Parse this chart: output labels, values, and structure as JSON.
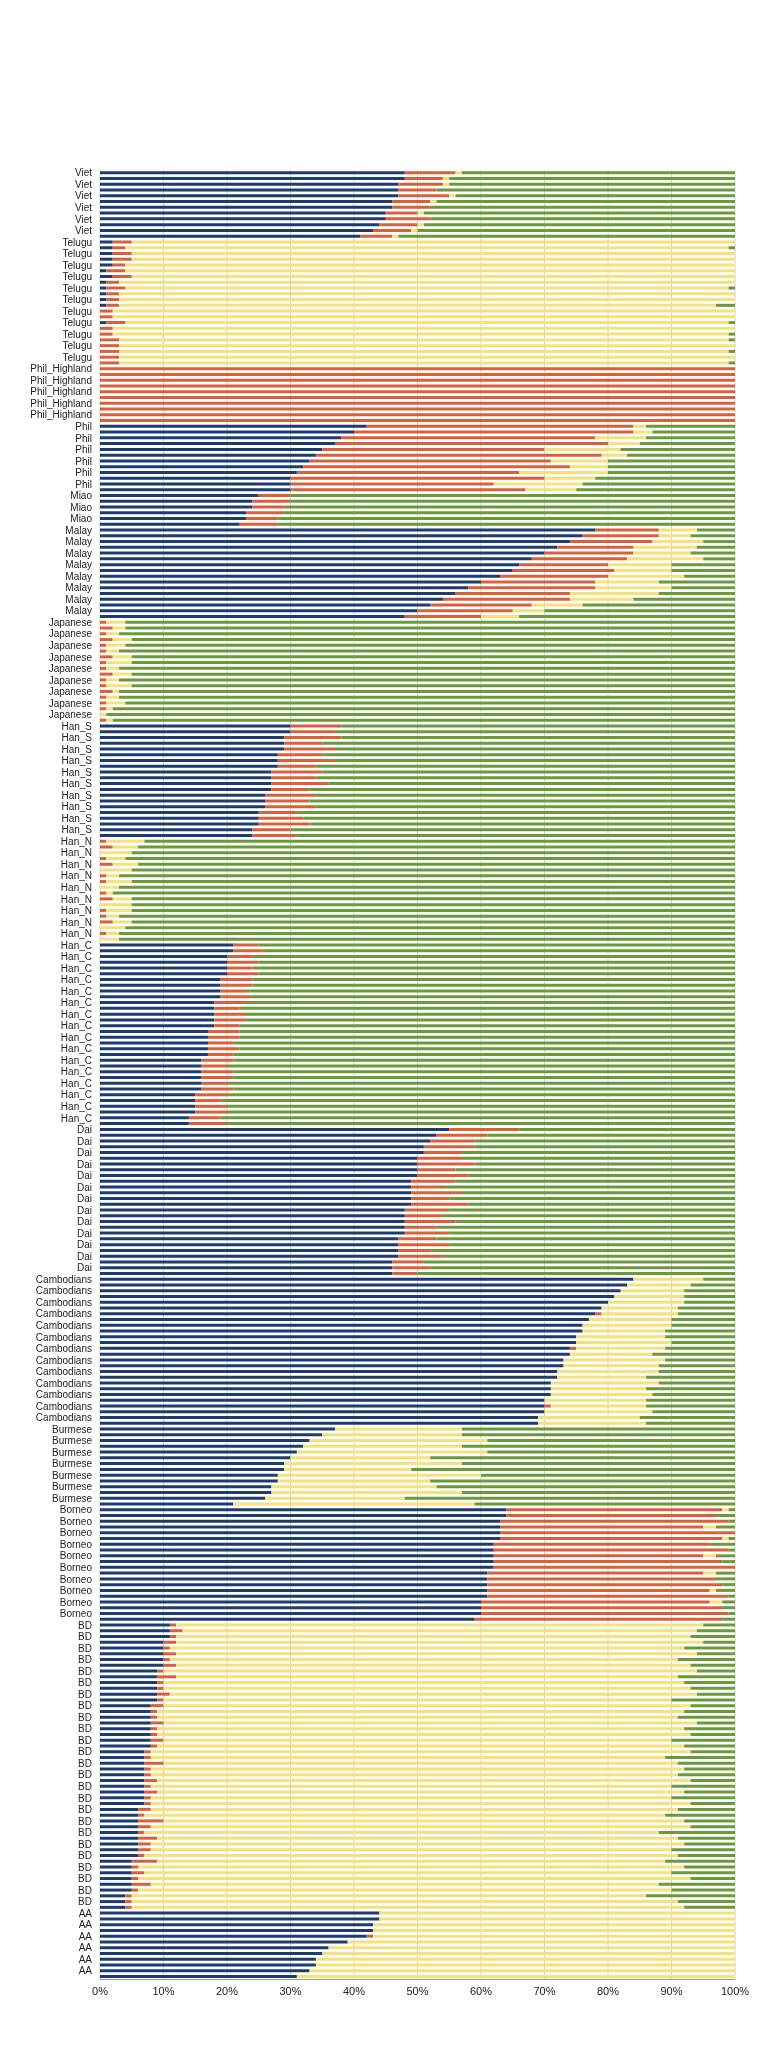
{
  "chart_data": {
    "type": "bar",
    "orientation": "horizontal",
    "stacked": true,
    "grid": "x",
    "xlim": [
      0,
      100
    ],
    "xticks": [
      {
        "value": 0,
        "label": "0%"
      },
      {
        "value": 10,
        "label": "10%"
      },
      {
        "value": 20,
        "label": "20%"
      },
      {
        "value": 30,
        "label": "30%"
      },
      {
        "value": 40,
        "label": "40%"
      },
      {
        "value": 50,
        "label": "50%"
      },
      {
        "value": 60,
        "label": "60%"
      },
      {
        "value": 70,
        "label": "70%"
      },
      {
        "value": 80,
        "label": "80%"
      },
      {
        "value": 90,
        "label": "90%"
      },
      {
        "value": 100,
        "label": "100%"
      }
    ],
    "categories": [
      "Viet",
      null,
      "Viet",
      null,
      "Viet",
      null,
      "Viet",
      null,
      "Viet",
      null,
      "Viet",
      null,
      "Telugu",
      null,
      "Telugu",
      null,
      "Telugu",
      null,
      "Telugu",
      null,
      "Telugu",
      null,
      "Telugu",
      null,
      "Telugu",
      null,
      "Telugu",
      null,
      "Telugu",
      null,
      "Telugu",
      null,
      "Telugu",
      null,
      "Phil_Highland",
      null,
      "Phil_Highland",
      null,
      "Phil_Highland",
      null,
      "Phil_Highland",
      null,
      "Phil_Highland",
      null,
      "Phil",
      null,
      "Phil",
      null,
      "Phil",
      null,
      "Phil",
      null,
      "Phil",
      null,
      "Phil",
      null,
      "Miao",
      null,
      "Miao",
      null,
      "Miao",
      null,
      "Malay",
      null,
      "Malay",
      null,
      "Malay",
      null,
      "Malay",
      null,
      "Malay",
      null,
      "Malay",
      null,
      "Malay",
      null,
      "Malay",
      null,
      "Japanese",
      null,
      "Japanese",
      null,
      "Japanese",
      null,
      "Japanese",
      null,
      "Japanese",
      null,
      "Japanese",
      null,
      "Japanese",
      null,
      "Japanese",
      null,
      "Japanese",
      null,
      "Han_S",
      null,
      "Han_S",
      null,
      "Han_S",
      null,
      "Han_S",
      null,
      "Han_S",
      null,
      "Han_S",
      null,
      "Han_S",
      null,
      "Han_S",
      null,
      "Han_S",
      null,
      "Han_S",
      null,
      "Han_N",
      null,
      "Han_N",
      null,
      "Han_N",
      null,
      "Han_N",
      null,
      "Han_N",
      null,
      "Han_N",
      null,
      "Han_N",
      null,
      "Han_N",
      null,
      "Han_N",
      null,
      "Han_C",
      null,
      "Han_C",
      null,
      "Han_C",
      null,
      "Han_C",
      null,
      "Han_C",
      null,
      "Han_C",
      null,
      "Han_C",
      null,
      "Han_C",
      null,
      "Han_C",
      null,
      "Han_C",
      null,
      "Han_C",
      null,
      "Han_C",
      null,
      "Han_C",
      null,
      "Han_C",
      null,
      "Han_C",
      null,
      "Han_C",
      null,
      "Dai",
      null,
      "Dai",
      null,
      "Dai",
      null,
      "Dai",
      null,
      "Dai",
      null,
      "Dai",
      null,
      "Dai",
      null,
      "Dai",
      null,
      "Dai",
      null,
      "Dai",
      null,
      "Dai",
      null,
      "Dai",
      null,
      "Dai",
      null,
      "Cambodians",
      null,
      "Cambodians",
      null,
      "Cambodians",
      null,
      "Cambodians",
      null,
      "Cambodians",
      null,
      "Cambodians",
      null,
      "Cambodians",
      null,
      "Cambodians",
      null,
      "Cambodians",
      null,
      "Cambodians",
      null,
      "Cambodians",
      null,
      "Cambodians",
      null,
      "Cambodians",
      null,
      "Burmese",
      null,
      "Burmese",
      null,
      "Burmese",
      null,
      "Burmese",
      null,
      "Burmese",
      null,
      "Burmese",
      null,
      "Burmese",
      null,
      "Borneo",
      null,
      "Borneo",
      null,
      "Borneo",
      null,
      "Borneo",
      null,
      "Borneo",
      null,
      "Borneo",
      null,
      "Borneo",
      null,
      "Borneo",
      null,
      "Borneo",
      null,
      "Borneo",
      null,
      "BD",
      null,
      "BD",
      null,
      "BD",
      null,
      "BD",
      null,
      "BD",
      null,
      "BD",
      null,
      "BD",
      null,
      "BD",
      null,
      "BD",
      null,
      "BD",
      null,
      "BD",
      null,
      "BD",
      null,
      "BD",
      null,
      "BD",
      null,
      "BD",
      null,
      "BD",
      null,
      "BD",
      null,
      "BD",
      null,
      "BD",
      null,
      "BD",
      null,
      "BD",
      null,
      "BD",
      null,
      "BD",
      null,
      "BD",
      null,
      "BD",
      null,
      "AA",
      null,
      "AA",
      null,
      "AA",
      null,
      "AA",
      null,
      "AA",
      null,
      "AA",
      null
    ],
    "series": [
      {
        "color": "#1d3c70",
        "values": [
          48,
          48,
          47,
          47,
          47,
          46,
          46,
          45,
          45,
          44,
          43,
          41,
          2,
          2,
          2,
          2,
          2,
          1,
          2,
          1,
          1,
          1,
          1,
          1,
          0,
          0,
          1,
          0,
          0,
          0,
          0,
          0,
          0,
          0,
          0,
          0,
          0,
          0,
          0,
          0,
          0,
          0,
          0,
          0,
          42,
          40,
          38,
          37,
          35,
          34,
          33,
          32,
          31,
          30,
          30,
          30,
          25,
          24,
          24,
          23,
          23,
          22,
          78,
          76,
          74,
          72,
          70,
          68,
          66,
          65,
          63,
          60,
          58,
          56,
          54,
          52,
          50,
          48,
          0,
          0,
          0,
          0,
          0,
          0,
          0,
          0,
          0,
          0,
          0,
          0,
          0,
          0,
          0,
          0,
          0,
          0,
          30,
          30,
          29,
          29,
          29,
          28,
          28,
          28,
          27,
          27,
          27,
          27,
          26,
          26,
          26,
          25,
          25,
          25,
          24,
          24,
          0,
          0,
          0,
          0,
          0,
          0,
          0,
          0,
          0,
          0,
          0,
          0,
          0,
          0,
          0,
          0,
          0,
          0,
          21,
          21,
          20,
          20,
          20,
          20,
          19,
          19,
          19,
          19,
          18,
          18,
          18,
          18,
          18,
          17,
          17,
          17,
          17,
          17,
          16,
          16,
          16,
          16,
          16,
          16,
          15,
          15,
          15,
          15,
          14,
          14,
          55,
          53,
          52,
          51,
          51,
          50,
          50,
          50,
          50,
          49,
          49,
          49,
          49,
          49,
          48,
          48,
          48,
          48,
          48,
          47,
          47,
          47,
          47,
          46,
          46,
          46,
          84,
          83,
          82,
          81,
          80,
          79,
          78,
          77,
          76,
          76,
          75,
          75,
          74,
          74,
          73,
          73,
          72,
          72,
          71,
          71,
          71,
          70,
          70,
          70,
          69,
          69,
          37,
          35,
          33,
          32,
          31,
          30,
          29,
          29,
          28,
          28,
          27,
          27,
          26,
          21,
          64,
          64,
          63,
          63,
          63,
          63,
          62,
          62,
          62,
          62,
          62,
          61,
          61,
          61,
          61,
          61,
          60,
          60,
          60,
          59,
          11,
          11,
          11,
          10,
          10,
          10,
          10,
          10,
          9,
          9,
          9,
          9,
          9,
          9,
          8,
          8,
          8,
          8,
          8,
          8,
          8,
          8,
          7,
          7,
          7,
          7,
          7,
          7,
          7,
          7,
          7,
          7,
          6,
          6,
          6,
          6,
          6,
          6,
          6,
          6,
          6,
          5,
          5,
          5,
          5,
          5,
          5,
          4,
          4,
          4,
          44,
          44,
          43,
          43,
          42,
          39,
          36,
          35,
          34,
          34,
          33,
          31
        ]
      },
      {
        "color": "#d8613c",
        "values": [
          8,
          6,
          7,
          6,
          8,
          6,
          6,
          5,
          7,
          6,
          6,
          5,
          3,
          2,
          3,
          3,
          2,
          3,
          3,
          2,
          3,
          2,
          2,
          2,
          2,
          2,
          3,
          2,
          2,
          3,
          3,
          3,
          3,
          3,
          100,
          100,
          100,
          100,
          100,
          100,
          100,
          100,
          100,
          100,
          42,
          44,
          40,
          43,
          35,
          45,
          38,
          42,
          35,
          40,
          32,
          37,
          5,
          6,
          5,
          6,
          5,
          6,
          10,
          12,
          13,
          12,
          14,
          15,
          14,
          16,
          17,
          18,
          20,
          18,
          20,
          16,
          15,
          12,
          1,
          2,
          1,
          2,
          1,
          1,
          2,
          1,
          1,
          2,
          1,
          1,
          2,
          1,
          1,
          1,
          0,
          1,
          8,
          7,
          9,
          6,
          8,
          7,
          9,
          6,
          8,
          7,
          9,
          6,
          8,
          7,
          8,
          6,
          7,
          8,
          6,
          7,
          1,
          2,
          0,
          1,
          2,
          0,
          1,
          1,
          0,
          1,
          2,
          0,
          1,
          1,
          2,
          0,
          1,
          0,
          4,
          5,
          4,
          5,
          4,
          5,
          5,
          5,
          4,
          5,
          5,
          4,
          5,
          5,
          4,
          5,
          5,
          4,
          5,
          4,
          5,
          4,
          5,
          5,
          4,
          5,
          5,
          4,
          5,
          5,
          5,
          6,
          11,
          8,
          7,
          8,
          6,
          7,
          9,
          6,
          8,
          7,
          5,
          8,
          6,
          9,
          7,
          6,
          8,
          5,
          7,
          6,
          8,
          5,
          7,
          5,
          6,
          4,
          0,
          0,
          0,
          0,
          0,
          0,
          1,
          0,
          0,
          0,
          0,
          0,
          1,
          0,
          0,
          0,
          0,
          0,
          0,
          0,
          0,
          0,
          1,
          0,
          0,
          0,
          0,
          0,
          0,
          0,
          0,
          0,
          0,
          0,
          0,
          0,
          0,
          0,
          0,
          0,
          34,
          33,
          36,
          32,
          37,
          35,
          34,
          37,
          33,
          36,
          38,
          34,
          36,
          37,
          35,
          38,
          36,
          38,
          39,
          39,
          1,
          2,
          1,
          2,
          1,
          2,
          1,
          2,
          1,
          3,
          1,
          1,
          2,
          1,
          2,
          1,
          1,
          2,
          1,
          1,
          2,
          1,
          1,
          1,
          3,
          1,
          1,
          2,
          1,
          2,
          1,
          1,
          2,
          1,
          4,
          2,
          1,
          3,
          2,
          2,
          1,
          4,
          1,
          2,
          1,
          3,
          1,
          1,
          1,
          1,
          0,
          0,
          0,
          0,
          1,
          0,
          0,
          0,
          0,
          0,
          0,
          0
        ]
      },
      {
        "color": "#f6e27c",
        "values": [
          1,
          1,
          1,
          0,
          1,
          1,
          0,
          1,
          0,
          1,
          1,
          1,
          95,
          95,
          95,
          95,
          96,
          96,
          95,
          97,
          95,
          97,
          97,
          94,
          98,
          98,
          95,
          98,
          97,
          96,
          97,
          96,
          97,
          96,
          0,
          0,
          0,
          0,
          0,
          0,
          0,
          0,
          0,
          0,
          2,
          3,
          8,
          5,
          12,
          4,
          9,
          6,
          14,
          8,
          14,
          8,
          0,
          0,
          0,
          0,
          0,
          0,
          6,
          5,
          8,
          10,
          9,
          12,
          10,
          9,
          12,
          10,
          12,
          14,
          10,
          8,
          5,
          6,
          3,
          2,
          2,
          3,
          3,
          2,
          3,
          4,
          2,
          3,
          2,
          4,
          1,
          2,
          3,
          1,
          1,
          1,
          0,
          0,
          0,
          0,
          0,
          0,
          0,
          0,
          0,
          0,
          0,
          0,
          0,
          0,
          0,
          0,
          0,
          0,
          0,
          0,
          6,
          4,
          5,
          3,
          4,
          5,
          2,
          4,
          3,
          1,
          3,
          5,
          4,
          2,
          3,
          4,
          2,
          3,
          0,
          0,
          0,
          0,
          0,
          0,
          0,
          0,
          0,
          0,
          0,
          0,
          0,
          0,
          0,
          0,
          0,
          0,
          0,
          0,
          0,
          0,
          0,
          0,
          0,
          0,
          0,
          0,
          0,
          0,
          0,
          0,
          0,
          0,
          0,
          0,
          0,
          0,
          0,
          0,
          0,
          0,
          0,
          0,
          0,
          0,
          0,
          0,
          0,
          0,
          0,
          0,
          0,
          0,
          0,
          0,
          0,
          0,
          11,
          10,
          10,
          11,
          12,
          12,
          12,
          13,
          14,
          13,
          14,
          15,
          14,
          13,
          16,
          15,
          16,
          14,
          17,
          15,
          16,
          16,
          15,
          17,
          16,
          17,
          20,
          22,
          28,
          25,
          30,
          22,
          28,
          20,
          32,
          24,
          26,
          30,
          22,
          38,
          1,
          0,
          0,
          2,
          0,
          1,
          0,
          0,
          2,
          0,
          0,
          2,
          0,
          0,
          1,
          0,
          2,
          0,
          0,
          0,
          83,
          81,
          81,
          83,
          81,
          82,
          80,
          81,
          84,
          79,
          82,
          83,
          83,
          80,
          83,
          83,
          82,
          84,
          83,
          84,
          80,
          83,
          85,
          81,
          81,
          84,
          83,
          84,
          82,
          83,
          82,
          85,
          83,
          82,
          82,
          85,
          81,
          82,
          84,
          82,
          84,
          80,
          86,
          83,
          87,
          80,
          84,
          81,
          86,
          87,
          56,
          56,
          57,
          57,
          57,
          61,
          64,
          65,
          66,
          66,
          67,
          69
        ]
      },
      {
        "color": "#6a9a3a",
        "values": [
          43,
          45,
          45,
          47,
          44,
          47,
          48,
          49,
          48,
          49,
          50,
          53,
          0,
          1,
          0,
          0,
          0,
          0,
          0,
          0,
          1,
          0,
          0,
          3,
          0,
          0,
          1,
          0,
          1,
          1,
          0,
          1,
          0,
          1,
          0,
          0,
          0,
          0,
          0,
          0,
          0,
          0,
          0,
          0,
          14,
          13,
          14,
          15,
          18,
          17,
          20,
          20,
          20,
          22,
          24,
          25,
          70,
          70,
          71,
          71,
          72,
          72,
          6,
          7,
          5,
          6,
          7,
          5,
          10,
          10,
          8,
          12,
          10,
          12,
          16,
          24,
          30,
          34,
          96,
          96,
          97,
          95,
          96,
          97,
          95,
          95,
          97,
          95,
          97,
          95,
          97,
          97,
          96,
          98,
          99,
          98,
          62,
          63,
          62,
          65,
          63,
          65,
          63,
          66,
          65,
          66,
          64,
          67,
          66,
          67,
          66,
          69,
          68,
          67,
          70,
          69,
          93,
          94,
          95,
          96,
          94,
          95,
          97,
          95,
          97,
          98,
          95,
          95,
          95,
          97,
          95,
          96,
          97,
          97,
          75,
          74,
          76,
          75,
          76,
          75,
          76,
          76,
          77,
          76,
          77,
          78,
          77,
          77,
          78,
          78,
          78,
          79,
          78,
          79,
          79,
          80,
          79,
          79,
          80,
          79,
          80,
          81,
          80,
          80,
          81,
          80,
          34,
          39,
          41,
          41,
          43,
          43,
          41,
          44,
          42,
          44,
          46,
          43,
          45,
          42,
          45,
          46,
          44,
          47,
          45,
          47,
          45,
          48,
          46,
          49,
          48,
          50,
          5,
          7,
          8,
          8,
          8,
          9,
          9,
          10,
          10,
          11,
          11,
          10,
          11,
          13,
          11,
          12,
          12,
          14,
          12,
          14,
          13,
          14,
          14,
          13,
          15,
          14,
          43,
          43,
          39,
          43,
          39,
          48,
          43,
          51,
          40,
          48,
          47,
          43,
          52,
          41,
          1,
          3,
          1,
          3,
          0,
          1,
          4,
          1,
          3,
          2,
          0,
          3,
          3,
          2,
          3,
          1,
          2,
          2,
          1,
          2,
          5,
          6,
          7,
          5,
          8,
          6,
          9,
          7,
          6,
          9,
          8,
          7,
          6,
          10,
          7,
          8,
          9,
          6,
          8,
          7,
          10,
          8,
          7,
          11,
          9,
          8,
          9,
          7,
          10,
          8,
          10,
          7,
          9,
          11,
          8,
          7,
          12,
          9,
          8,
          10,
          9,
          11,
          8,
          10,
          7,
          12,
          10,
          14,
          9,
          8,
          0,
          0,
          0,
          0,
          0,
          0,
          0,
          0,
          0,
          0,
          0,
          0
        ]
      }
    ]
  }
}
